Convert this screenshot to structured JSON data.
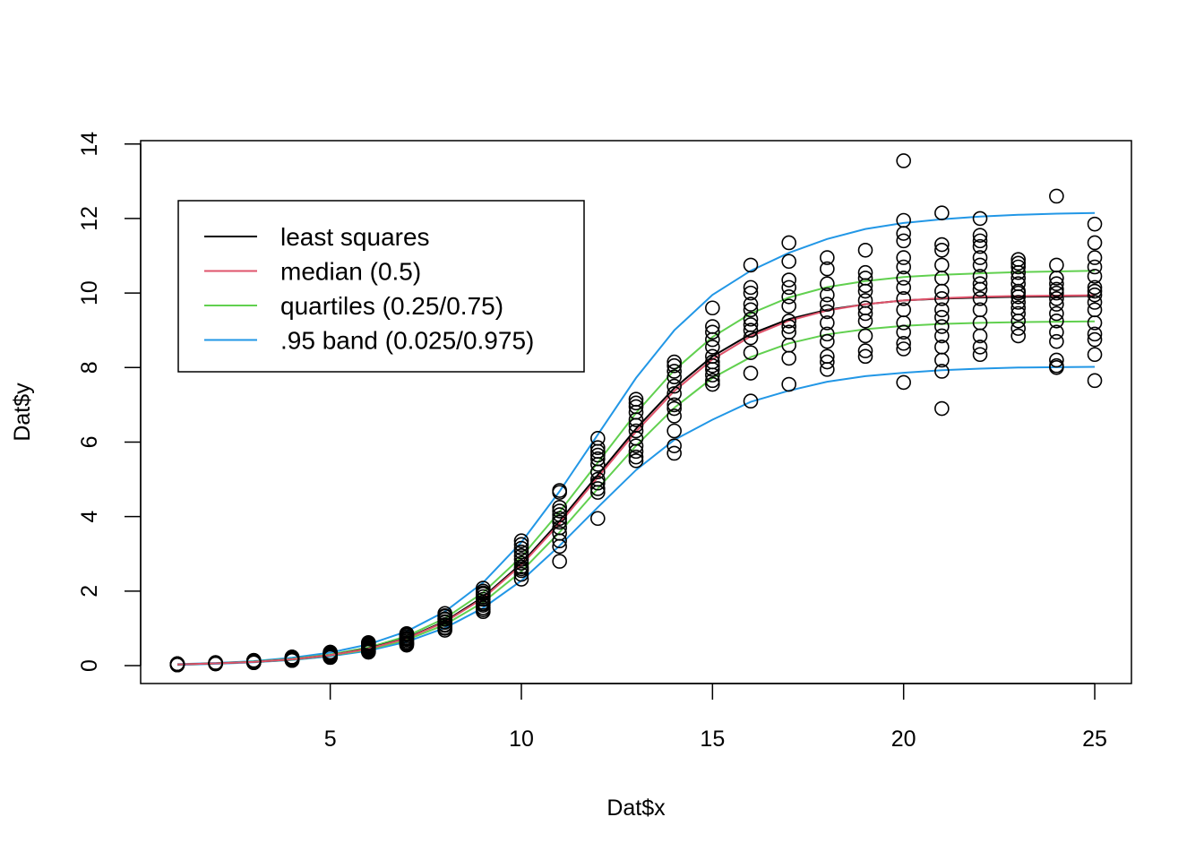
{
  "chart_data": {
    "type": "scatter",
    "title": "",
    "xlabel": "Dat$x",
    "ylabel": "Dat$y",
    "xlim": [
      0.04,
      25.96
    ],
    "ylim": [
      -0.48,
      14.09
    ],
    "x_ticks": [
      5,
      10,
      15,
      20,
      25
    ],
    "y_ticks": [
      0,
      2,
      4,
      6,
      8,
      10,
      12,
      14
    ],
    "grid": false,
    "legend_position": "top-left",
    "points": {
      "x": [
        1,
        1,
        1,
        1,
        1,
        1,
        1,
        1,
        1,
        1,
        1,
        1,
        2,
        2,
        2,
        2,
        2,
        2,
        2,
        2,
        2,
        2,
        2,
        2,
        3,
        3,
        3,
        3,
        3,
        3,
        3,
        3,
        3,
        3,
        3,
        3,
        4,
        4,
        4,
        4,
        4,
        4,
        4,
        4,
        4,
        4,
        4,
        4,
        5,
        5,
        5,
        5,
        5,
        5,
        5,
        5,
        5,
        5,
        5,
        5,
        6,
        6,
        6,
        6,
        6,
        6,
        6,
        6,
        6,
        6,
        6,
        6,
        7,
        7,
        7,
        7,
        7,
        7,
        7,
        7,
        7,
        7,
        7,
        7,
        8,
        8,
        8,
        8,
        8,
        8,
        8,
        8,
        8,
        8,
        8,
        8,
        9,
        9,
        9,
        9,
        9,
        9,
        9,
        9,
        9,
        9,
        9,
        9,
        10,
        10,
        10,
        10,
        10,
        10,
        10,
        10,
        10,
        10,
        10,
        10,
        11,
        11,
        11,
        11,
        11,
        11,
        11,
        11,
        11,
        11,
        11,
        11,
        12,
        12,
        12,
        12,
        12,
        12,
        12,
        12,
        12,
        12,
        12,
        12,
        13,
        13,
        13,
        13,
        13,
        13,
        13,
        13,
        13,
        13,
        13,
        13,
        14,
        14,
        14,
        14,
        14,
        14,
        14,
        14,
        14,
        14,
        14,
        14,
        15,
        15,
        15,
        15,
        15,
        15,
        15,
        15,
        15,
        15,
        15,
        15,
        16,
        16,
        16,
        16,
        16,
        16,
        16,
        16,
        16,
        16,
        16,
        16,
        17,
        17,
        17,
        17,
        17,
        17,
        17,
        17,
        17,
        17,
        17,
        17,
        18,
        18,
        18,
        18,
        18,
        18,
        18,
        18,
        18,
        18,
        18,
        18,
        19,
        19,
        19,
        19,
        19,
        19,
        19,
        19,
        19,
        19,
        19,
        19,
        20,
        20,
        20,
        20,
        20,
        20,
        20,
        20,
        20,
        20,
        20,
        20,
        20,
        20,
        20,
        21,
        21,
        21,
        21,
        21,
        21,
        21,
        21,
        21,
        21,
        21,
        21,
        21,
        21,
        21,
        22,
        22,
        22,
        22,
        22,
        22,
        22,
        22,
        22,
        22,
        22,
        22,
        22,
        22,
        22,
        23,
        23,
        23,
        23,
        23,
        23,
        23,
        23,
        23,
        23,
        23,
        23,
        23,
        23,
        23,
        24,
        24,
        24,
        24,
        24,
        24,
        24,
        24,
        24,
        24,
        24,
        24,
        24,
        24,
        24,
        25,
        25,
        25,
        25,
        25,
        25,
        25,
        25,
        25,
        25,
        25,
        25,
        25,
        25,
        25
      ],
      "y": [
        0.02,
        0.03,
        0.04,
        0.05,
        0.03,
        0.02,
        0.04,
        0.05,
        0.03,
        0.04,
        0.02,
        0.05,
        0.05,
        0.06,
        0.07,
        0.08,
        0.06,
        0.05,
        0.07,
        0.08,
        0.06,
        0.07,
        0.05,
        0.08,
        0.08,
        0.1,
        0.12,
        0.14,
        0.09,
        0.11,
        0.13,
        0.08,
        0.1,
        0.12,
        0.14,
        0.09,
        0.14,
        0.17,
        0.2,
        0.23,
        0.15,
        0.18,
        0.21,
        0.14,
        0.17,
        0.2,
        0.23,
        0.16,
        0.22,
        0.27,
        0.32,
        0.36,
        0.24,
        0.29,
        0.34,
        0.22,
        0.27,
        0.32,
        0.36,
        0.25,
        0.36,
        0.42,
        0.5,
        0.58,
        0.62,
        0.39,
        0.45,
        0.53,
        0.6,
        0.38,
        0.48,
        0.56,
        0.55,
        0.62,
        0.7,
        0.78,
        0.86,
        0.58,
        0.66,
        0.74,
        0.82,
        0.6,
        0.72,
        0.84,
        0.95,
        1.02,
        1.1,
        1.18,
        1.26,
        1.34,
        1.4,
        1.0,
        1.08,
        1.16,
        1.24,
        1.32,
        1.45,
        1.55,
        1.62,
        1.7,
        1.78,
        1.85,
        1.92,
        2.0,
        2.08,
        1.5,
        1.66,
        1.95,
        2.32,
        2.45,
        2.55,
        2.65,
        2.75,
        2.85,
        2.95,
        3.05,
        3.15,
        3.25,
        3.35,
        2.6,
        2.8,
        3.2,
        3.35,
        3.55,
        3.7,
        3.85,
        3.95,
        4.05,
        4.15,
        4.25,
        4.65,
        4.7,
        3.95,
        4.65,
        4.75,
        4.9,
        5.0,
        5.2,
        5.4,
        5.55,
        5.65,
        5.75,
        5.85,
        6.1,
        5.5,
        5.6,
        5.75,
        5.9,
        6.1,
        6.3,
        6.45,
        6.6,
        6.8,
        6.95,
        7.05,
        7.15,
        5.7,
        5.9,
        6.3,
        6.7,
        6.9,
        7.0,
        7.3,
        7.5,
        7.75,
        7.9,
        8.05,
        8.15,
        7.55,
        7.65,
        7.8,
        7.95,
        8.05,
        8.15,
        8.3,
        8.55,
        8.75,
        8.95,
        9.1,
        9.6,
        7.1,
        7.85,
        8.4,
        8.8,
        9.0,
        9.15,
        9.3,
        9.55,
        9.7,
        10.0,
        10.15,
        10.75,
        7.55,
        8.25,
        8.6,
        8.95,
        9.1,
        9.25,
        9.65,
        9.9,
        10.15,
        10.35,
        10.85,
        11.35,
        7.95,
        8.15,
        8.3,
        8.7,
        8.9,
        9.2,
        9.5,
        9.7,
        9.95,
        10.25,
        10.65,
        10.95,
        8.3,
        8.45,
        8.85,
        9.25,
        9.45,
        9.6,
        9.8,
        10.05,
        10.2,
        10.4,
        10.55,
        11.15,
        7.6,
        8.5,
        8.65,
        8.95,
        9.2,
        9.55,
        9.85,
        10.15,
        10.4,
        10.7,
        10.95,
        11.4,
        11.6,
        11.95,
        13.55,
        6.9,
        7.9,
        8.2,
        8.55,
        8.85,
        9.1,
        9.35,
        9.55,
        9.85,
        10.05,
        10.4,
        10.75,
        11.15,
        11.3,
        12.15,
        8.35,
        8.55,
        8.85,
        9.2,
        9.55,
        9.85,
        10.1,
        10.25,
        10.45,
        10.75,
        10.95,
        11.25,
        11.4,
        11.55,
        12.0,
        8.85,
        9.05,
        9.25,
        9.45,
        9.6,
        9.75,
        9.9,
        10.0,
        10.05,
        10.25,
        10.4,
        10.55,
        10.7,
        10.8,
        10.9,
        8.0,
        8.2,
        8.7,
        8.95,
        9.25,
        9.45,
        9.7,
        9.85,
        10.0,
        10.1,
        10.25,
        10.4,
        10.75,
        12.6,
        8.05,
        7.65,
        8.35,
        8.75,
        8.9,
        9.2,
        9.55,
        9.75,
        9.95,
        10.15,
        10.45,
        10.7,
        10.95,
        11.35,
        11.85,
        10.05
      ]
    },
    "x": [
      1,
      2,
      3,
      4,
      5,
      6,
      7,
      8,
      9,
      10,
      11,
      12,
      13,
      14,
      15,
      16,
      17,
      18,
      19,
      20,
      21,
      22,
      23,
      24,
      25
    ],
    "series": [
      {
        "name": "least squares",
        "color": "#000000",
        "values": [
          0.03,
          0.06,
          0.1,
          0.17,
          0.28,
          0.46,
          0.74,
          1.19,
          1.84,
          2.74,
          3.88,
          5.12,
          6.36,
          7.45,
          8.3,
          8.9,
          9.3,
          9.55,
          9.7,
          9.8,
          9.85,
          9.88,
          9.9,
          9.91,
          9.92
        ]
      },
      {
        "name": "median (0.5)",
        "color": "#DF536B",
        "values": [
          0.03,
          0.06,
          0.1,
          0.17,
          0.28,
          0.45,
          0.73,
          1.17,
          1.81,
          2.7,
          3.82,
          5.05,
          6.28,
          7.37,
          8.22,
          8.84,
          9.26,
          9.53,
          9.7,
          9.8,
          9.86,
          9.9,
          9.92,
          9.93,
          9.94
        ]
      },
      {
        "name": "quartiles (0.25/0.75)",
        "color": "#61D04F",
        "values": [
          0.03,
          0.06,
          0.1,
          0.16,
          0.27,
          0.43,
          0.69,
          1.1,
          1.7,
          2.53,
          3.58,
          4.75,
          5.9,
          6.92,
          7.72,
          8.28,
          8.65,
          8.89,
          9.03,
          9.12,
          9.17,
          9.2,
          9.22,
          9.23,
          9.24
        ]
      },
      {
        "name": "",
        "color": "#61D04F",
        "values": [
          0.03,
          0.06,
          0.11,
          0.18,
          0.3,
          0.49,
          0.79,
          1.27,
          1.96,
          2.92,
          4.13,
          5.45,
          6.78,
          7.93,
          8.82,
          9.45,
          9.88,
          10.16,
          10.32,
          10.43,
          10.49,
          10.53,
          10.56,
          10.58,
          10.6
        ]
      },
      {
        "name": ".95 band (0.025/0.975)",
        "color": "#2297E6",
        "values": [
          0.02,
          0.05,
          0.09,
          0.15,
          0.25,
          0.4,
          0.64,
          1.01,
          1.55,
          2.28,
          3.22,
          4.25,
          5.25,
          6.06,
          6.6,
          7.08,
          7.38,
          7.62,
          7.77,
          7.86,
          7.93,
          7.97,
          8.0,
          8.01,
          8.02
        ]
      },
      {
        "name": "",
        "color": "#2297E6",
        "values": [
          0.04,
          0.07,
          0.12,
          0.21,
          0.35,
          0.57,
          0.92,
          1.45,
          2.23,
          3.31,
          4.68,
          6.2,
          7.72,
          9.0,
          9.95,
          10.6,
          11.08,
          11.45,
          11.72,
          11.88,
          11.98,
          12.05,
          12.1,
          12.13,
          12.15
        ]
      }
    ]
  }
}
